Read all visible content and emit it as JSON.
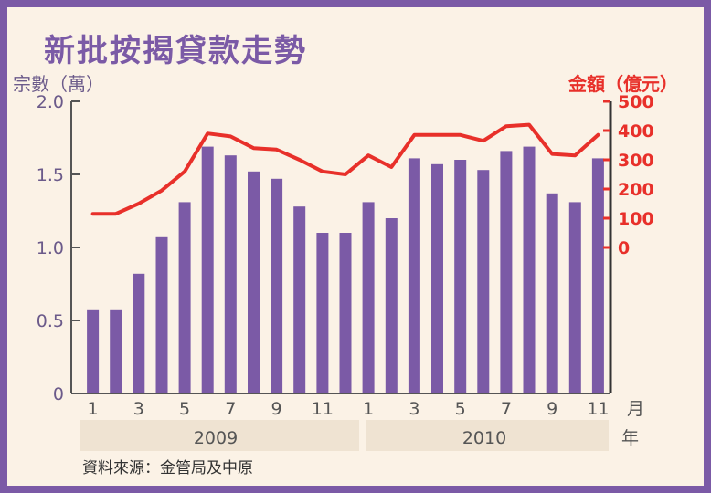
{
  "colors": {
    "border": "#7b5aa6",
    "background": "#fbf2e6",
    "bar": "#7b5aa6",
    "line": "#e8302a",
    "year_band": "#efe3d2"
  },
  "title": "新批按揭貸款走勢",
  "left_axis_label": "宗數（萬）",
  "right_axis_label": "金額（億元）",
  "x_unit_month": "月",
  "x_unit_year": "年",
  "source": "資料來源：金管局及中原",
  "chart_data": {
    "type": "bar+line",
    "title": "新批按揭貸款走勢",
    "ylabel_left": "宗數（萬）",
    "ylabel_right": "金額（億元）",
    "ylim_left": [
      0,
      2.0
    ],
    "yticks_left": [
      "0",
      "0.5",
      "1.0",
      "1.5",
      "2.0"
    ],
    "ylim_right": [
      0,
      500
    ],
    "yticks_right": [
      "0",
      "100",
      "200",
      "300",
      "400",
      "500"
    ],
    "x_tick_labels": [
      "1",
      "3",
      "5",
      "7",
      "9",
      "11",
      "1",
      "3",
      "5",
      "7",
      "9",
      "11"
    ],
    "years": [
      "2009",
      "2010"
    ],
    "months": [
      "2009-01",
      "2009-02",
      "2009-03",
      "2009-04",
      "2009-05",
      "2009-06",
      "2009-07",
      "2009-08",
      "2009-09",
      "2009-10",
      "2009-11",
      "2009-12",
      "2010-01",
      "2010-02",
      "2010-03",
      "2010-04",
      "2010-05",
      "2010-06",
      "2010-07",
      "2010-08",
      "2010-09",
      "2010-10",
      "2010-11"
    ],
    "bar_values": [
      0.57,
      0.57,
      0.82,
      1.07,
      1.31,
      1.69,
      1.63,
      1.52,
      1.47,
      1.28,
      1.1,
      1.1,
      1.31,
      1.2,
      1.61,
      1.57,
      1.6,
      1.53,
      1.66,
      1.69,
      1.37,
      1.31,
      1.61
    ],
    "line_values": [
      115,
      115,
      150,
      195,
      260,
      390,
      380,
      340,
      335,
      300,
      260,
      250,
      315,
      275,
      385,
      385,
      385,
      365,
      415,
      420,
      320,
      315,
      385
    ]
  }
}
